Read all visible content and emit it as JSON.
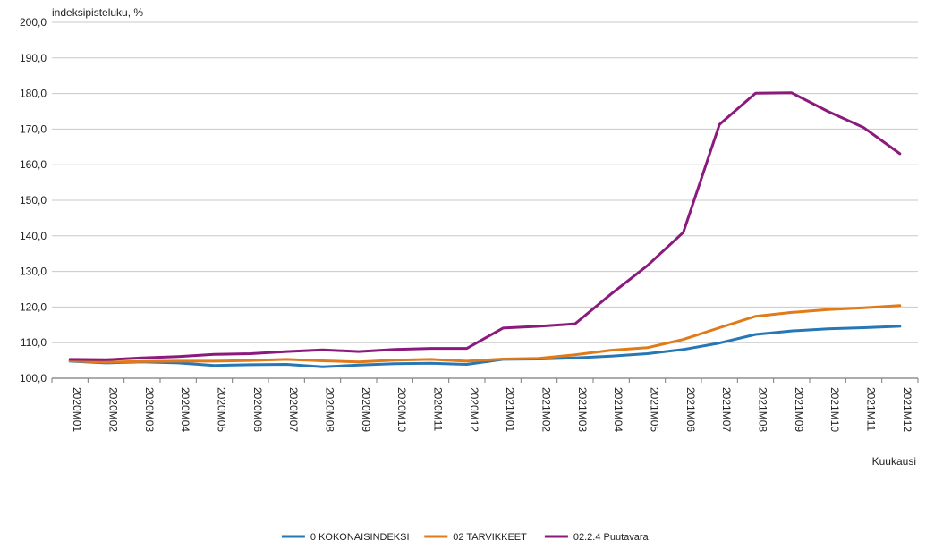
{
  "chart_data": {
    "type": "line",
    "title": "",
    "ylabel": "indeksipisteluku, %",
    "xlabel": "Kuukausi",
    "ylim": [
      100,
      200
    ],
    "yticks": [
      "100,0",
      "110,0",
      "120,0",
      "130,0",
      "140,0",
      "150,0",
      "160,0",
      "170,0",
      "180,0",
      "190,0",
      "200,0"
    ],
    "grid": "horizontal",
    "legend_position": "bottom",
    "categories": [
      "2020M01",
      "2020M02",
      "2020M03",
      "2020M04",
      "2020M05",
      "2020M06",
      "2020M07",
      "2020M08",
      "2020M09",
      "2020M10",
      "2020M11",
      "2020M12",
      "2021M01",
      "2021M02",
      "2021M03",
      "2021M04",
      "2021M05",
      "2021M06",
      "2021M07",
      "2021M08",
      "2021M09",
      "2021M10",
      "2021M11",
      "2021M12"
    ],
    "series": [
      {
        "name": "0 KOKONAISINDEKSI",
        "color": "#2877b5",
        "values": [
          104.8,
          104.3,
          104.6,
          104.3,
          103.6,
          103.8,
          103.9,
          103.2,
          103.7,
          104.1,
          104.2,
          103.9,
          105.3,
          105.4,
          105.7,
          106.2,
          106.9,
          108.1,
          109.9,
          112.3,
          113.3,
          113.9,
          114.2,
          114.6
        ]
      },
      {
        "name": "02 TARVIKKEET",
        "color": "#e07b1a",
        "values": [
          104.9,
          104.5,
          104.7,
          104.8,
          104.8,
          105.0,
          105.3,
          104.9,
          104.6,
          105.1,
          105.3,
          104.8,
          105.4,
          105.6,
          106.6,
          107.9,
          108.6,
          110.9,
          114.2,
          117.4,
          118.5,
          119.3,
          119.8,
          120.4
        ]
      },
      {
        "name": "02.2.4 Puutavara",
        "color": "#8b1a7c",
        "values": [
          105.3,
          105.2,
          105.7,
          106.1,
          106.7,
          106.9,
          107.5,
          108.0,
          107.5,
          108.1,
          108.4,
          108.4,
          114.1,
          114.6,
          115.3,
          123.7,
          131.6,
          141.0,
          171.3,
          180.1,
          180.2,
          175.0,
          170.4,
          163.1
        ]
      }
    ]
  }
}
